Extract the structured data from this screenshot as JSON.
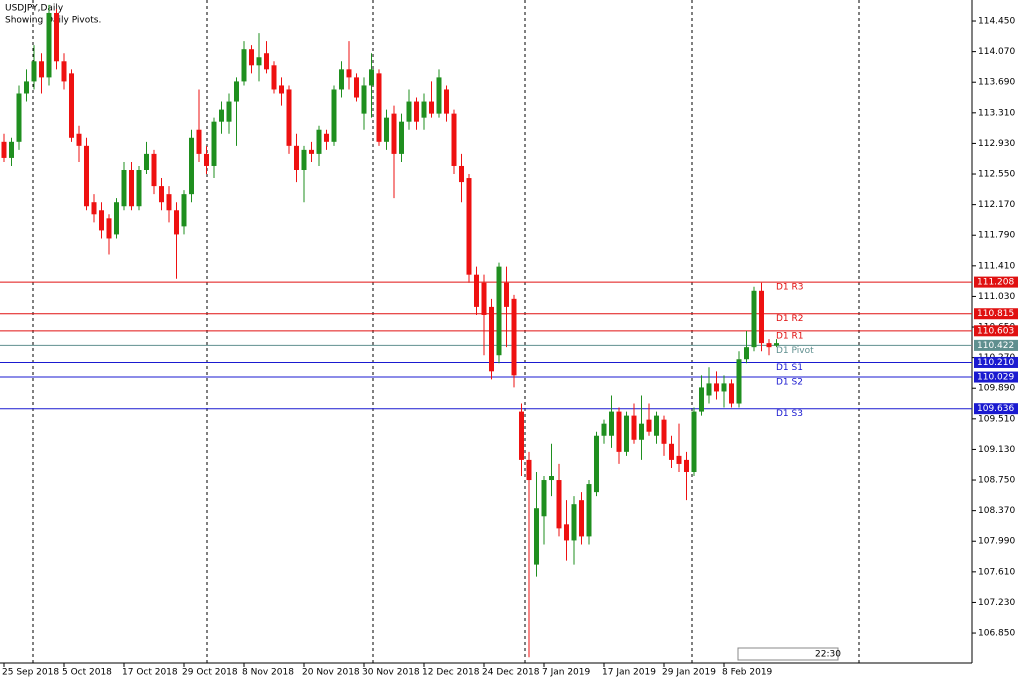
{
  "chart_data": {
    "type": "candlestick",
    "title": "USDJPY,Daily",
    "subtitle": "Showing Daily Pivots.",
    "clock_label": "22:30",
    "up_color": "#1f8f1f",
    "down_color": "#ee1111",
    "categories": [
      "25 Sep 2018",
      null,
      null,
      null,
      null,
      null,
      null,
      null,
      "5 Oct 2018",
      null,
      null,
      null,
      null,
      null,
      null,
      null,
      "17 Oct 2018",
      null,
      null,
      null,
      null,
      null,
      null,
      null,
      "29 Oct 2018",
      null,
      null,
      null,
      null,
      null,
      null,
      null,
      "8 Nov 2018",
      null,
      null,
      null,
      null,
      null,
      null,
      null,
      "20 Nov 2018",
      null,
      null,
      null,
      null,
      null,
      null,
      null,
      "30 Nov 2018",
      null,
      null,
      null,
      null,
      null,
      null,
      null,
      "12 Dec 2018",
      null,
      null,
      null,
      null,
      null,
      null,
      null,
      "24 Dec 2018",
      null,
      null,
      null,
      null,
      null,
      null,
      null,
      "7 Jan 2019",
      null,
      null,
      null,
      null,
      null,
      null,
      null,
      "17 Jan 2019",
      null,
      null,
      null,
      null,
      null,
      null,
      null,
      "29 Jan 2019",
      null,
      null,
      null,
      null,
      null,
      null,
      null,
      "8 Feb 2019",
      null,
      null,
      null,
      null,
      null,
      null,
      null
    ],
    "open": [
      112.95,
      112.75,
      112.95,
      113.55,
      113.7,
      113.95,
      113.75,
      114.55,
      113.95,
      113.8,
      113.05,
      112.9,
      112.2,
      112.1,
      112.0,
      111.8,
      112.15,
      112.6,
      112.15,
      112.6,
      112.8,
      112.4,
      112.3,
      112.1,
      111.9,
      112.3,
      113.1,
      112.8,
      112.65,
      113.2,
      113.2,
      113.45,
      113.7,
      114.1,
      113.9,
      114.05,
      113.9,
      113.65,
      113.6,
      112.9,
      112.6,
      112.85,
      112.8,
      113.05,
      112.95,
      113.6,
      113.85,
      113.75,
      113.3,
      113.65,
      113.8,
      112.95,
      113.3,
      112.8,
      113.2,
      113.45,
      113.25,
      113.45,
      113.3,
      113.6,
      113.3,
      112.65,
      112.5,
      111.3,
      111.2,
      110.9,
      110.3,
      111.2,
      111.0,
      109.6,
      109.0,
      107.7,
      108.3,
      108.75,
      108.75,
      108.2,
      108.0,
      108.5,
      108.05,
      108.6,
      109.3,
      109.3,
      109.6,
      109.1,
      109.55,
      109.25,
      109.5,
      109.3,
      109.5,
      109.2,
      109.05,
      109.0,
      108.85,
      109.6,
      109.8,
      109.95,
      109.85,
      109.95,
      109.7,
      110.25,
      110.4,
      111.1,
      110.45,
      110.42
    ],
    "high": [
      113.05,
      113.0,
      113.65,
      113.85,
      114.15,
      114.05,
      114.65,
      114.6,
      114.05,
      113.85,
      113.15,
      113.0,
      112.3,
      112.2,
      112.05,
      112.25,
      112.7,
      112.7,
      112.65,
      112.95,
      112.85,
      112.5,
      112.4,
      112.2,
      112.35,
      113.1,
      113.6,
      112.9,
      113.25,
      113.45,
      113.55,
      113.75,
      114.2,
      114.15,
      114.3,
      114.2,
      113.95,
      113.75,
      113.65,
      113.05,
      112.9,
      112.95,
      113.15,
      113.1,
      113.65,
      113.95,
      114.2,
      113.8,
      113.75,
      114.05,
      113.85,
      113.35,
      113.4,
      113.3,
      113.6,
      113.5,
      113.55,
      113.7,
      113.85,
      113.65,
      113.35,
      112.8,
      112.55,
      111.4,
      111.3,
      111.0,
      111.45,
      111.4,
      111.05,
      109.7,
      109.1,
      108.85,
      108.8,
      109.2,
      108.95,
      108.5,
      108.55,
      108.6,
      108.75,
      109.35,
      109.5,
      109.8,
      109.65,
      109.6,
      109.7,
      109.8,
      109.7,
      109.6,
      109.55,
      109.3,
      109.45,
      109.1,
      109.65,
      110.05,
      110.15,
      110.1,
      110.05,
      110.0,
      110.35,
      110.6,
      111.15,
      111.2,
      110.5,
      110.5
    ],
    "low": [
      112.7,
      112.65,
      112.85,
      113.45,
      113.6,
      113.55,
      113.65,
      113.85,
      113.6,
      112.95,
      112.7,
      112.1,
      111.95,
      111.75,
      111.55,
      111.75,
      112.1,
      112.1,
      112.1,
      112.55,
      112.3,
      112.1,
      111.95,
      111.25,
      111.8,
      112.2,
      112.7,
      112.55,
      112.5,
      113.05,
      113.05,
      112.9,
      113.65,
      113.8,
      113.7,
      113.8,
      113.55,
      113.4,
      112.8,
      112.45,
      112.2,
      112.7,
      112.65,
      112.85,
      112.9,
      113.5,
      113.6,
      113.45,
      113.1,
      113.25,
      112.9,
      112.85,
      112.25,
      112.7,
      113.1,
      113.1,
      113.1,
      113.25,
      113.25,
      113.2,
      112.55,
      112.2,
      111.2,
      110.8,
      110.3,
      110.0,
      110.2,
      110.4,
      109.9,
      108.8,
      106.55,
      107.55,
      107.95,
      108.55,
      108.05,
      107.75,
      107.7,
      107.95,
      107.95,
      108.55,
      109.2,
      109.15,
      108.95,
      109.05,
      109.2,
      109.0,
      109.3,
      109.2,
      109.05,
      108.9,
      108.85,
      108.5,
      108.8,
      109.55,
      109.7,
      109.75,
      109.65,
      109.65,
      109.65,
      110.2,
      110.35,
      110.35,
      110.3,
      110.4
    ],
    "close": [
      112.75,
      112.95,
      113.55,
      113.7,
      113.95,
      113.75,
      114.55,
      113.95,
      113.7,
      113.0,
      112.9,
      112.15,
      112.05,
      111.85,
      111.75,
      112.2,
      112.6,
      112.15,
      112.6,
      112.8,
      112.4,
      112.2,
      112.1,
      111.8,
      112.3,
      113.0,
      112.8,
      112.65,
      113.2,
      113.35,
      113.45,
      113.7,
      114.1,
      113.9,
      114.0,
      113.85,
      113.6,
      113.55,
      112.9,
      112.6,
      112.85,
      112.8,
      113.1,
      112.95,
      113.6,
      113.85,
      113.75,
      113.5,
      113.65,
      113.85,
      112.95,
      113.25,
      112.8,
      113.2,
      113.45,
      113.2,
      113.45,
      113.3,
      113.75,
      113.3,
      112.65,
      112.45,
      111.3,
      110.9,
      110.8,
      110.1,
      111.4,
      110.9,
      110.05,
      109.0,
      108.75,
      108.4,
      108.75,
      108.8,
      108.15,
      108.0,
      108.45,
      108.05,
      108.7,
      109.3,
      109.45,
      109.6,
      109.1,
      109.55,
      109.25,
      109.45,
      109.35,
      109.55,
      109.2,
      109.0,
      108.95,
      108.85,
      109.6,
      109.9,
      109.95,
      109.85,
      109.95,
      109.7,
      110.25,
      110.4,
      111.1,
      110.45,
      110.4,
      110.45
    ],
    "pivots": [
      {
        "name": "D1 R3",
        "value": 111.208,
        "label": "111.208",
        "color": "#e01010"
      },
      {
        "name": "D1 R2",
        "value": 110.815,
        "label": "110.815",
        "color": "#e01010"
      },
      {
        "name": "D1 R1",
        "value": 110.603,
        "label": "110.603",
        "color": "#e01010"
      },
      {
        "name": "D1 Pivot",
        "value": 110.422,
        "label": "110.422",
        "color": "#5f8f8f"
      },
      {
        "name": "D1 S1",
        "value": 110.21,
        "label": "110.210",
        "color": "#1a1ad0"
      },
      {
        "name": "D1 S2",
        "value": 110.029,
        "label": "110.029",
        "color": "#1a1ad0"
      },
      {
        "name": "D1 S3",
        "value": 109.636,
        "label": "109.636",
        "color": "#1a1ad0"
      }
    ],
    "ylim": [
      106.478,
      114.711
    ],
    "yticks": [
      {
        "value": 106.85,
        "label": "106.850"
      },
      {
        "value": 107.23,
        "label": "107.230"
      },
      {
        "value": 107.61,
        "label": "107.610"
      },
      {
        "value": 107.99,
        "label": "107.990"
      },
      {
        "value": 108.37,
        "label": "108.370"
      },
      {
        "value": 108.75,
        "label": "108.750"
      },
      {
        "value": 109.13,
        "label": "109.130"
      },
      {
        "value": 109.51,
        "label": "109.510"
      },
      {
        "value": 109.89,
        "label": "109.890"
      },
      {
        "value": 110.27,
        "label": "110.270"
      },
      {
        "value": 110.65,
        "label": "110.650"
      },
      {
        "value": 111.03,
        "label": "111.030"
      },
      {
        "value": 111.41,
        "label": "111.410"
      },
      {
        "value": 111.79,
        "label": "111.790"
      },
      {
        "value": 112.17,
        "label": "112.170"
      },
      {
        "value": 112.55,
        "label": "112.550"
      },
      {
        "value": 112.93,
        "label": "112.930"
      },
      {
        "value": 113.31,
        "label": "113.310"
      },
      {
        "value": 113.69,
        "label": "113.690"
      },
      {
        "value": 114.07,
        "label": "114.070"
      },
      {
        "value": 114.45,
        "label": "114.450"
      }
    ]
  }
}
